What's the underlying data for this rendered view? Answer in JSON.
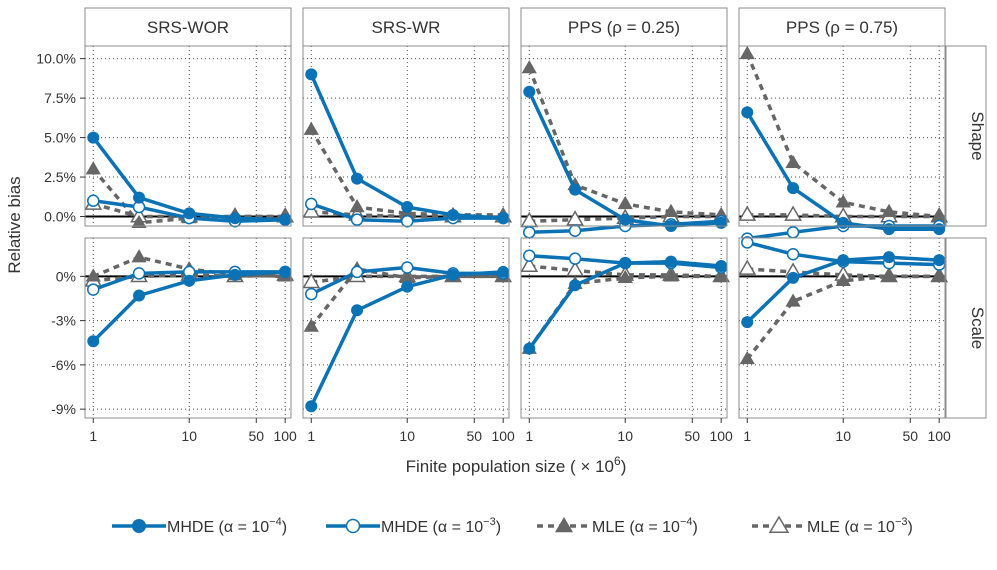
{
  "chart_data": {
    "type": "line",
    "xlabel": "Finite population size (×10⁶)",
    "ylabel": "Relative bias",
    "x": [
      1,
      3,
      10,
      30,
      100
    ],
    "x_ticks": [
      1,
      10,
      50,
      100
    ],
    "x_tick_labels": [
      "1",
      "10",
      "50",
      "100"
    ],
    "columns": [
      "SRS-WOR",
      "SRS-WR",
      "PPS (ρ = 0.25)",
      "PPS (ρ = 0.75)"
    ],
    "rows": [
      {
        "name": "Shape",
        "ylim": [
          -0.6,
          10.8
        ],
        "ticks": [
          0,
          2.5,
          5,
          7.5,
          10
        ],
        "tick_labels": [
          "0.0%",
          "2.5%",
          "5.0%",
          "7.5%",
          "10.0%"
        ]
      },
      {
        "name": "Scale",
        "ylim": [
          -9.6,
          2.6
        ],
        "ticks": [
          -9,
          -6,
          -3,
          0
        ],
        "tick_labels": [
          "-9%",
          "-6%",
          "-3%",
          "0%"
        ]
      }
    ],
    "legend": [
      {
        "key": "mhde4",
        "label": "MHDE (α = 10",
        "exp": "−4",
        "close": ")"
      },
      {
        "key": "mhde3",
        "label": "MHDE (α = 10",
        "exp": "−3",
        "close": ")"
      },
      {
        "key": "mle4",
        "label": "MLE (α = 10",
        "exp": "−4",
        "close": ")"
      },
      {
        "key": "mle3",
        "label": "MLE (α = 10",
        "exp": "−3",
        "close": ")"
      }
    ],
    "series_styles": {
      "mhde4": {
        "color": "#0b72b5",
        "dash": "",
        "marker": "circle",
        "filled": true
      },
      "mhde3": {
        "color": "#0b72b5",
        "dash": "",
        "marker": "circle",
        "filled": false
      },
      "mle4": {
        "color": "#666666",
        "dash": "6,5",
        "marker": "triangle",
        "filled": true
      },
      "mle3": {
        "color": "#666666",
        "dash": "6,5",
        "marker": "triangle",
        "filled": false
      }
    },
    "panels": [
      {
        "row": "Shape",
        "col": "SRS-WOR",
        "series": {
          "mhde4": [
            5.0,
            1.2,
            0.2,
            -0.1,
            -0.2
          ],
          "mhde3": [
            1.0,
            0.6,
            -0.1,
            -0.3,
            -0.2
          ],
          "mle4": [
            3.0,
            -0.4,
            -0.1,
            0.0,
            0.0
          ],
          "mle3": [
            0.8,
            0.0,
            0.0,
            0.0,
            0.0
          ]
        }
      },
      {
        "row": "Shape",
        "col": "SRS-WR",
        "series": {
          "mhde4": [
            9.0,
            2.4,
            0.6,
            0.1,
            -0.1
          ],
          "mhde3": [
            0.8,
            -0.2,
            -0.3,
            -0.1,
            -0.1
          ],
          "mle4": [
            5.5,
            0.6,
            0.2,
            0.1,
            0.1
          ],
          "mle3": [
            0.3,
            0.1,
            0.0,
            0.0,
            0.0
          ]
        }
      },
      {
        "row": "Shape",
        "col": "PPS (ρ = 0.25)",
        "series": {
          "mhde4": [
            7.9,
            1.7,
            -0.2,
            -0.6,
            -0.4
          ],
          "mhde3": [
            -1.0,
            -0.9,
            -0.6,
            -0.5,
            -0.3
          ],
          "mle4": [
            9.4,
            2.0,
            0.8,
            0.3,
            0.1
          ],
          "mle3": [
            -0.3,
            -0.2,
            -0.1,
            0.0,
            0.0
          ]
        }
      },
      {
        "row": "Shape",
        "col": "PPS (ρ = 0.75)",
        "series": {
          "mhde4": [
            6.6,
            1.8,
            -0.4,
            -0.8,
            -0.8
          ],
          "mhde3": [
            -1.4,
            -1.0,
            -0.6,
            -0.6,
            -0.6
          ],
          "mle4": [
            10.3,
            3.4,
            0.9,
            0.3,
            0.0
          ],
          "mle3": [
            0.1,
            0.1,
            0.0,
            0.0,
            0.0
          ]
        }
      },
      {
        "row": "Scale",
        "col": "SRS-WOR",
        "series": {
          "mhde4": [
            -4.4,
            -1.3,
            -0.3,
            0.1,
            0.3
          ],
          "mhde3": [
            -0.9,
            0.2,
            0.3,
            0.3,
            0.3
          ],
          "mle4": [
            0.0,
            1.3,
            0.5,
            0.1,
            0.0
          ],
          "mle3": [
            -0.3,
            0.0,
            0.1,
            0.0,
            0.1
          ]
        }
      },
      {
        "row": "Scale",
        "col": "SRS-WR",
        "series": {
          "mhde4": [
            -8.8,
            -2.3,
            -0.7,
            0.1,
            0.3
          ],
          "mhde3": [
            -1.2,
            0.3,
            0.6,
            0.2,
            0.2
          ],
          "mle4": [
            -3.4,
            0.5,
            -0.1,
            0.0,
            0.0
          ],
          "mle3": [
            -0.4,
            0.0,
            0.0,
            0.0,
            0.0
          ]
        }
      },
      {
        "row": "Scale",
        "col": "PPS (ρ = 0.25)",
        "series": {
          "mhde4": [
            -4.9,
            -0.6,
            0.9,
            1.0,
            0.7
          ],
          "mhde3": [
            1.4,
            1.2,
            0.9,
            0.9,
            0.6
          ],
          "mle4": [
            -4.9,
            -0.5,
            -0.1,
            0.0,
            0.0
          ],
          "mle3": [
            0.7,
            0.4,
            0.1,
            0.1,
            0.0
          ]
        }
      },
      {
        "row": "Scale",
        "col": "PPS (ρ = 0.75)",
        "series": {
          "mhde4": [
            -3.1,
            -0.1,
            1.1,
            1.3,
            1.1
          ],
          "mhde3": [
            2.3,
            1.5,
            1.0,
            0.9,
            0.8
          ],
          "mle4": [
            -5.6,
            -1.7,
            -0.3,
            0.0,
            0.0
          ],
          "mle3": [
            0.5,
            0.3,
            0.1,
            0.0,
            0.0
          ]
        }
      }
    ]
  }
}
